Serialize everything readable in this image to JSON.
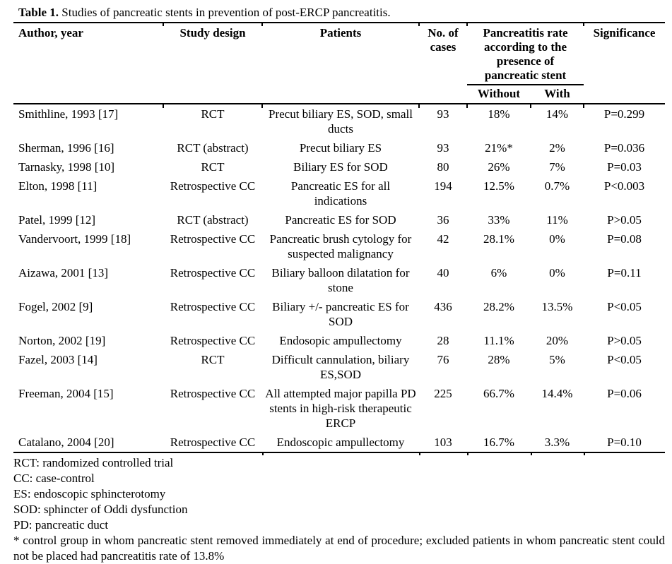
{
  "title": {
    "label": "Table 1.",
    "text": "Studies of pancreatic stents in prevention of post-ERCP pancreatitis."
  },
  "table": {
    "headers": {
      "author": "Author, year",
      "design": "Study design",
      "patients": "Patients",
      "cases": "No. of cases",
      "group": "Pancreatitis rate according to the presence of pancreatic stent",
      "without": "Without",
      "with": "With",
      "significance": "Significance"
    },
    "rows": [
      {
        "author": "Smithline, 1993 [17]",
        "design": "RCT",
        "patients": "Precut biliary ES, SOD, small ducts",
        "cases": "93",
        "without": "18%",
        "with": "14%",
        "significance": "P=0.299"
      },
      {
        "author": "Sherman, 1996 [16]",
        "design": "RCT (abstract)",
        "patients": "Precut biliary ES",
        "cases": "93",
        "without": "21%*",
        "with": "2%",
        "significance": "P=0.036"
      },
      {
        "author": "Tarnasky, 1998 [10]",
        "design": "RCT",
        "patients": "Biliary ES for SOD",
        "cases": "80",
        "without": "26%",
        "with": "7%",
        "significance": "P=0.03"
      },
      {
        "author": "Elton, 1998 [11]",
        "design": "Retrospective CC",
        "patients": "Pancreatic ES for all indications",
        "cases": "194",
        "without": "12.5%",
        "with": "0.7%",
        "significance": "P<0.003"
      },
      {
        "author": "Patel, 1999 [12]",
        "design": "RCT (abstract)",
        "patients": "Pancreatic ES for SOD",
        "cases": "36",
        "without": "33%",
        "with": "11%",
        "significance": "P>0.05"
      },
      {
        "author": "Vandervoort, 1999 [18]",
        "design": "Retrospective CC",
        "patients": "Pancreatic brush cytology for suspected malignancy",
        "cases": "42",
        "without": "28.1%",
        "with": "0%",
        "significance": "P=0.08"
      },
      {
        "author": "Aizawa, 2001 [13]",
        "design": "Retrospective CC",
        "patients": "Biliary balloon dilatation for stone",
        "cases": "40",
        "without": "6%",
        "with": "0%",
        "significance": "P=0.11"
      },
      {
        "author": "Fogel, 2002 [9]",
        "design": "Retrospective CC",
        "patients": "Biliary +/- pancreatic ES for SOD",
        "cases": "436",
        "without": "28.2%",
        "with": "13.5%",
        "significance": "P<0.05"
      },
      {
        "author": "Norton, 2002 [19]",
        "design": "Retrospective CC",
        "patients": "Endosopic ampullectomy",
        "cases": "28",
        "without": "11.1%",
        "with": "20%",
        "significance": "P>0.05"
      },
      {
        "author": "Fazel, 2003 [14]",
        "design": "RCT",
        "patients": "Difficult cannulation, biliary ES,SOD",
        "cases": "76",
        "without": "28%",
        "with": "5%",
        "significance": "P<0.05"
      },
      {
        "author": "Freeman, 2004 [15]",
        "design": "Retrospective CC",
        "patients": "All attempted major papilla PD stents in high-risk therapeutic ERCP",
        "cases": "225",
        "without": "66.7%",
        "with": "14.4%",
        "significance": "P=0.06"
      },
      {
        "author": "Catalano, 2004 [20]",
        "design": "Retrospective CC",
        "patients": "Endoscopic ampullectomy",
        "cases": "103",
        "without": "16.7%",
        "with": "3.3%",
        "significance": "P=0.10"
      }
    ]
  },
  "footnotes": [
    {
      "text": "RCT: randomized controlled trial"
    },
    {
      "text": "CC: case-control"
    },
    {
      "text": "ES: endoscopic sphincterotomy"
    },
    {
      "text": "SOD: sphincter of Oddi dysfunction"
    },
    {
      "text": "PD: pancreatic duct"
    },
    {
      "text": "* control group in whom pancreatic stent removed immediately at end of procedure; excluded patients in whom pancreatic stent could not be placed had pancreatitis rate of 13.8%"
    }
  ],
  "colors": {
    "text": "#000000",
    "background": "#ffffff",
    "rule": "#000000"
  }
}
